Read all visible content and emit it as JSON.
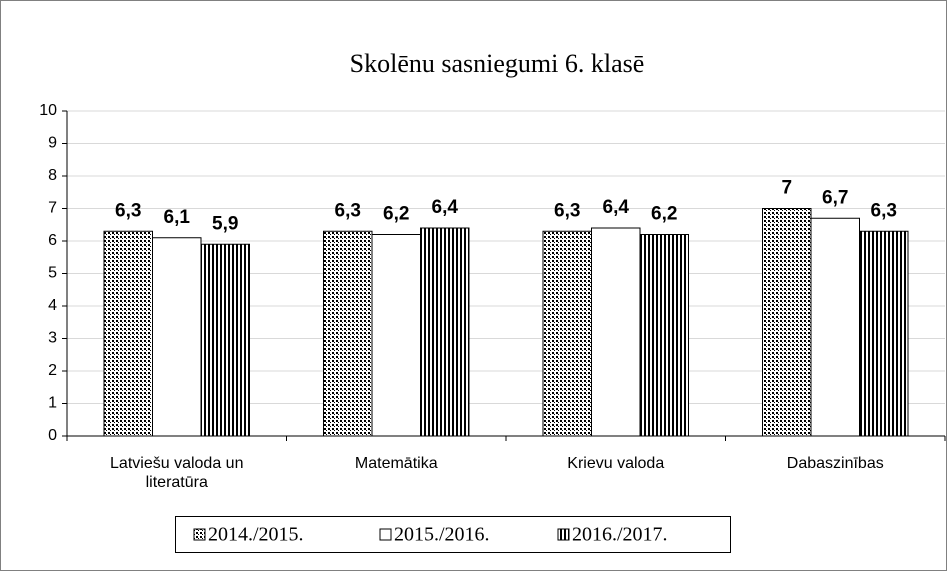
{
  "chart_data": {
    "type": "bar",
    "title": "Skolēnu sasniegumi 6. klasē",
    "categories": [
      "Latviešu valoda un literatūra",
      "Matemātika",
      "Krievu valoda",
      "Dabaszinības"
    ],
    "series": [
      {
        "name": "2014./2015.",
        "color": "#000000",
        "pattern": "checker",
        "values": [
          6.3,
          6.3,
          6.3,
          7
        ],
        "value_labels": [
          "6,3",
          "6,3",
          "6,3",
          "7"
        ]
      },
      {
        "name": "2015./2016.",
        "color": "#000000",
        "pattern": "none",
        "values": [
          6.1,
          6.2,
          6.4,
          6.7
        ],
        "value_labels": [
          "6,1",
          "6,2",
          "6,4",
          "6,7"
        ]
      },
      {
        "name": "2016./2017.",
        "color": "#000000",
        "pattern": "vertical",
        "values": [
          5.9,
          6.4,
          6.2,
          6.3
        ],
        "value_labels": [
          "5,9",
          "6,4",
          "6,2",
          "6,3"
        ]
      }
    ],
    "ylim": [
      0,
      10
    ],
    "yticks": [
      0,
      1,
      2,
      3,
      4,
      5,
      6,
      7,
      8,
      9,
      10
    ],
    "grid": true,
    "legend": "bottom"
  }
}
